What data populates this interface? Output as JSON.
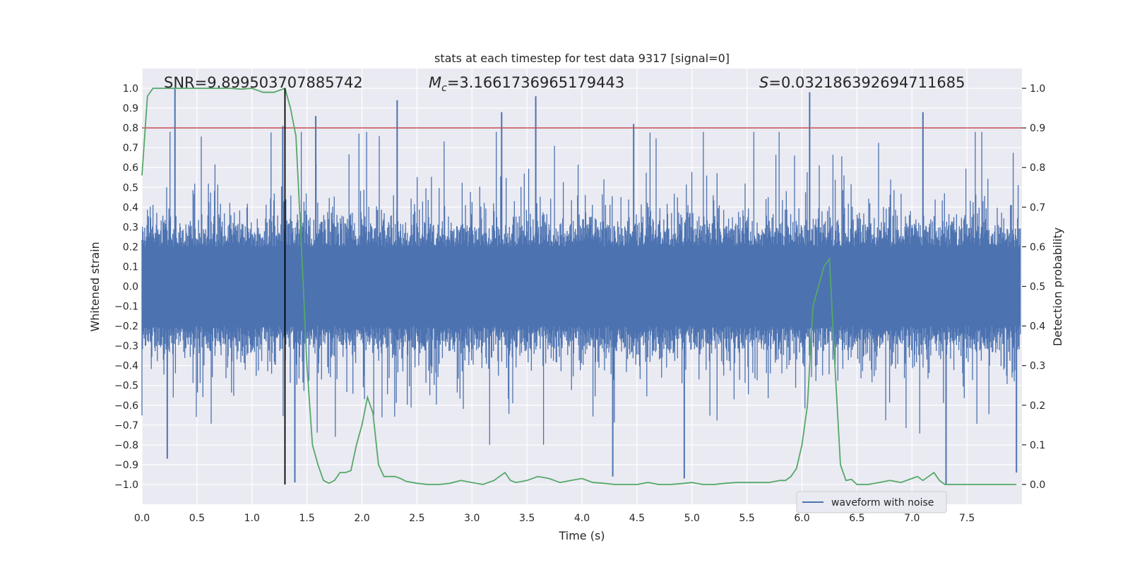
{
  "chart_data": {
    "type": "line",
    "title": "stats at each timestep for test data 9317 [signal=0]",
    "xlabel": "Time (s)",
    "ylabel_left": "Whitened strain",
    "ylabel_right": "Detection probability",
    "xlim": [
      0.0,
      8.0
    ],
    "ylim_left": [
      -1.1,
      1.1
    ],
    "ylim_right": [
      -0.05,
      1.05
    ],
    "x_ticks": [
      0.0,
      0.5,
      1.0,
      1.5,
      2.0,
      2.5,
      3.0,
      3.5,
      4.0,
      4.5,
      5.0,
      5.5,
      6.0,
      6.5,
      7.0,
      7.5
    ],
    "x_tick_labels": [
      "0.0",
      "0.5",
      "1.0",
      "1.5",
      "2.0",
      "2.5",
      "3.0",
      "3.5",
      "4.0",
      "4.5",
      "5.0",
      "5.5",
      "6.0",
      "6.5",
      "7.0",
      "7.5"
    ],
    "y_left_ticks": [
      1.0,
      0.9,
      0.8,
      0.7,
      0.6,
      0.5,
      0.4,
      0.3,
      0.2,
      0.1,
      0.0,
      -0.1,
      -0.2,
      -0.3,
      -0.4,
      -0.5,
      -0.6,
      -0.7,
      -0.8,
      -0.9,
      -1.0
    ],
    "y_left_tick_labels": [
      "1.0",
      "0.9",
      "0.8",
      "0.7",
      "0.6",
      "0.5",
      "0.4",
      "0.3",
      "0.2",
      "0.1",
      "0.0",
      "−0.1",
      "−0.2",
      "−0.3",
      "−0.4",
      "−0.5",
      "−0.6",
      "−0.7",
      "−0.8",
      "−0.9",
      "−1.0"
    ],
    "y_right_ticks": [
      1.0,
      0.9,
      0.8,
      0.7,
      0.6,
      0.5,
      0.4,
      0.3,
      0.2,
      0.1,
      0.0
    ],
    "y_right_tick_labels": [
      "1.0",
      "0.9",
      "0.8",
      "0.7",
      "0.6",
      "0.5",
      "0.4",
      "0.3",
      "0.2",
      "0.1",
      "0.0"
    ],
    "annotations": {
      "snr": "SNR=9.899503707885742",
      "mc_symbol": "M",
      "mc_sub": "c",
      "mc_value": "=3.1661736965179443",
      "s_symbol": "S",
      "s_value": "=0.032186392694711685"
    },
    "threshold": {
      "value": 0.9,
      "axis": "right",
      "color": "#c44e52"
    },
    "marker_time": 1.3,
    "legend": {
      "entries": [
        "waveform with noise"
      ],
      "position": "lower-right"
    },
    "series": [
      {
        "name": "waveform with noise",
        "axis": "left",
        "color": "#4c72b0",
        "style": "dense noise, |amplitude| ~0.2 core, spikes up to ~1.0",
        "seed": 9317,
        "n_samples": 1600,
        "core_amplitude": 0.2,
        "peaks": [
          {
            "x": 0.3,
            "y": 1.0
          },
          {
            "x": 1.28,
            "y": 0.81
          },
          {
            "x": 1.58,
            "y": 0.86
          },
          {
            "x": 2.32,
            "y": 0.94
          },
          {
            "x": 3.27,
            "y": 0.88
          },
          {
            "x": 3.58,
            "y": 0.96
          },
          {
            "x": 4.47,
            "y": 0.82
          },
          {
            "x": 6.07,
            "y": 0.98
          },
          {
            "x": 7.1,
            "y": 0.88
          },
          {
            "x": 7.31,
            "y": -1.0
          },
          {
            "x": 4.93,
            "y": -0.97
          },
          {
            "x": 7.95,
            "y": -0.94
          },
          {
            "x": 4.28,
            "y": -0.96
          },
          {
            "x": 1.39,
            "y": -0.99
          },
          {
            "x": 0.23,
            "y": -0.87
          }
        ]
      },
      {
        "name": "detection probability",
        "axis": "right",
        "color": "#55a868",
        "x": [
          0.0,
          0.05,
          0.1,
          0.2,
          0.3,
          0.4,
          0.5,
          0.6,
          0.7,
          0.8,
          0.9,
          1.0,
          1.1,
          1.2,
          1.3,
          1.35,
          1.4,
          1.45,
          1.5,
          1.55,
          1.6,
          1.65,
          1.7,
          1.75,
          1.8,
          1.85,
          1.9,
          1.95,
          2.0,
          2.05,
          2.1,
          2.15,
          2.2,
          2.25,
          2.3,
          2.35,
          2.4,
          2.5,
          2.6,
          2.7,
          2.8,
          2.9,
          3.0,
          3.1,
          3.2,
          3.25,
          3.3,
          3.35,
          3.4,
          3.5,
          3.6,
          3.7,
          3.75,
          3.8,
          3.9,
          4.0,
          4.1,
          4.2,
          4.3,
          4.4,
          4.5,
          4.6,
          4.7,
          4.8,
          4.9,
          5.0,
          5.1,
          5.2,
          5.3,
          5.4,
          5.5,
          5.6,
          5.7,
          5.8,
          5.85,
          5.9,
          5.95,
          6.0,
          6.05,
          6.1,
          6.15,
          6.2,
          6.25,
          6.3,
          6.35,
          6.4,
          6.45,
          6.5,
          6.6,
          6.7,
          6.8,
          6.9,
          6.95,
          7.0,
          7.05,
          7.1,
          7.15,
          7.2,
          7.25,
          7.3,
          7.4,
          7.5,
          7.6,
          7.7,
          7.8,
          7.9,
          7.95
        ],
        "y": [
          0.78,
          0.98,
          1.0,
          1.0,
          1.0,
          1.0,
          1.0,
          1.0,
          1.0,
          1.0,
          0.998,
          1.0,
          0.99,
          0.99,
          1.0,
          0.95,
          0.88,
          0.6,
          0.3,
          0.1,
          0.05,
          0.01,
          0.003,
          0.01,
          0.03,
          0.03,
          0.035,
          0.1,
          0.15,
          0.22,
          0.18,
          0.05,
          0.02,
          0.02,
          0.02,
          0.015,
          0.008,
          0.003,
          0.0,
          0.0,
          0.003,
          0.01,
          0.005,
          0.0,
          0.01,
          0.02,
          0.03,
          0.01,
          0.005,
          0.01,
          0.02,
          0.015,
          0.01,
          0.005,
          0.01,
          0.015,
          0.005,
          0.003,
          0.0,
          0.0,
          0.0,
          0.005,
          0.0,
          0.0,
          0.002,
          0.005,
          0.0,
          0.0,
          0.003,
          0.005,
          0.005,
          0.005,
          0.005,
          0.01,
          0.01,
          0.02,
          0.04,
          0.1,
          0.2,
          0.45,
          0.5,
          0.55,
          0.57,
          0.3,
          0.05,
          0.01,
          0.013,
          0.0,
          0.0,
          0.005,
          0.01,
          0.005,
          0.01,
          0.015,
          0.02,
          0.01,
          0.02,
          0.03,
          0.01,
          0.0,
          0.0,
          0.0,
          0.0,
          0.0,
          0.0,
          0.0,
          0.0
        ]
      }
    ]
  }
}
